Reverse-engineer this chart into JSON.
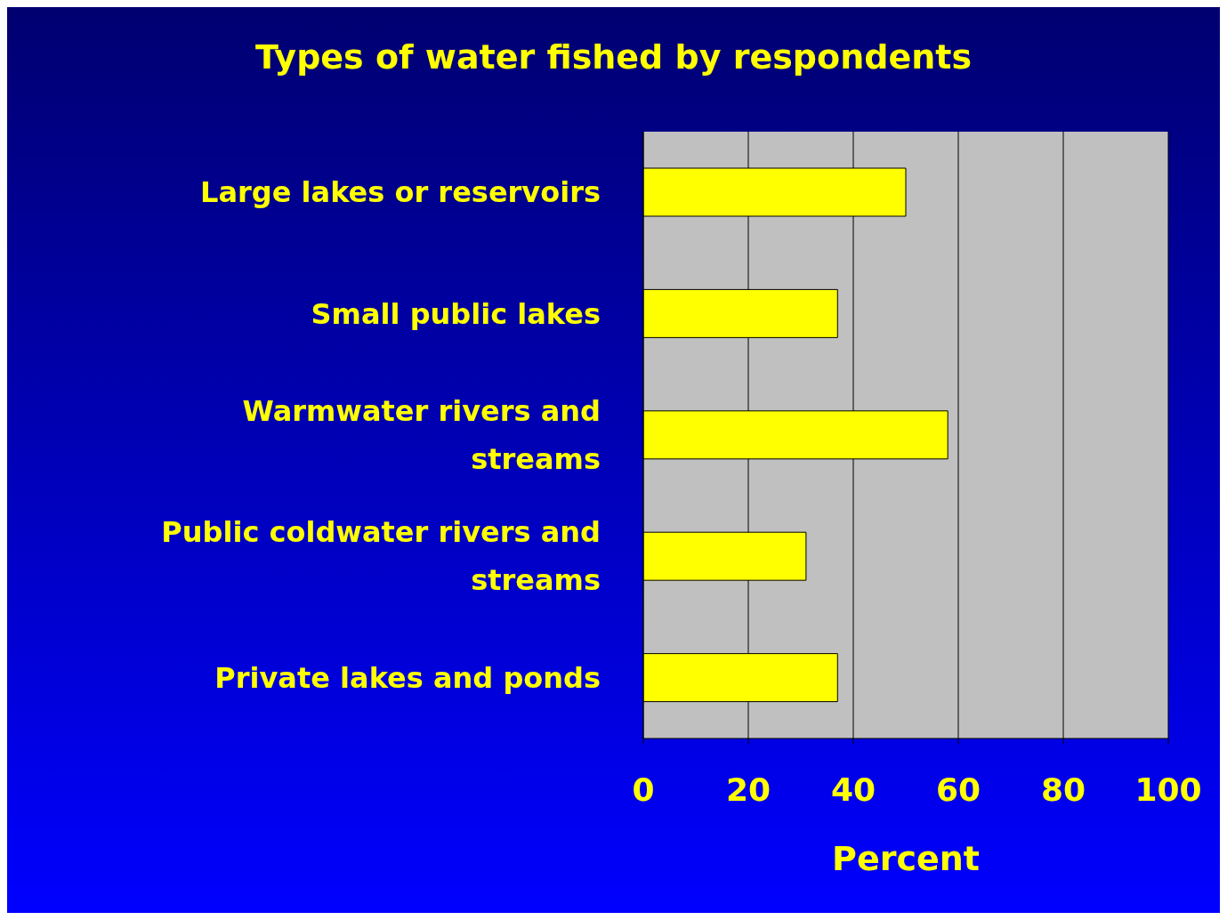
{
  "chart_data": {
    "type": "bar",
    "orientation": "horizontal",
    "title": "Types of water fished by respondents",
    "xlabel": "Percent",
    "categories": [
      "Large lakes or reservoirs",
      "Small public lakes",
      "Warmwater rivers and streams",
      "Public coldwater rivers and streams",
      "Private lakes and ponds"
    ],
    "values": [
      50,
      37,
      58,
      31,
      37
    ],
    "color": "#ffff00",
    "xlim": [
      0,
      100
    ],
    "xticks": [
      0,
      20,
      40,
      60,
      80,
      100
    ],
    "grid": "x"
  }
}
